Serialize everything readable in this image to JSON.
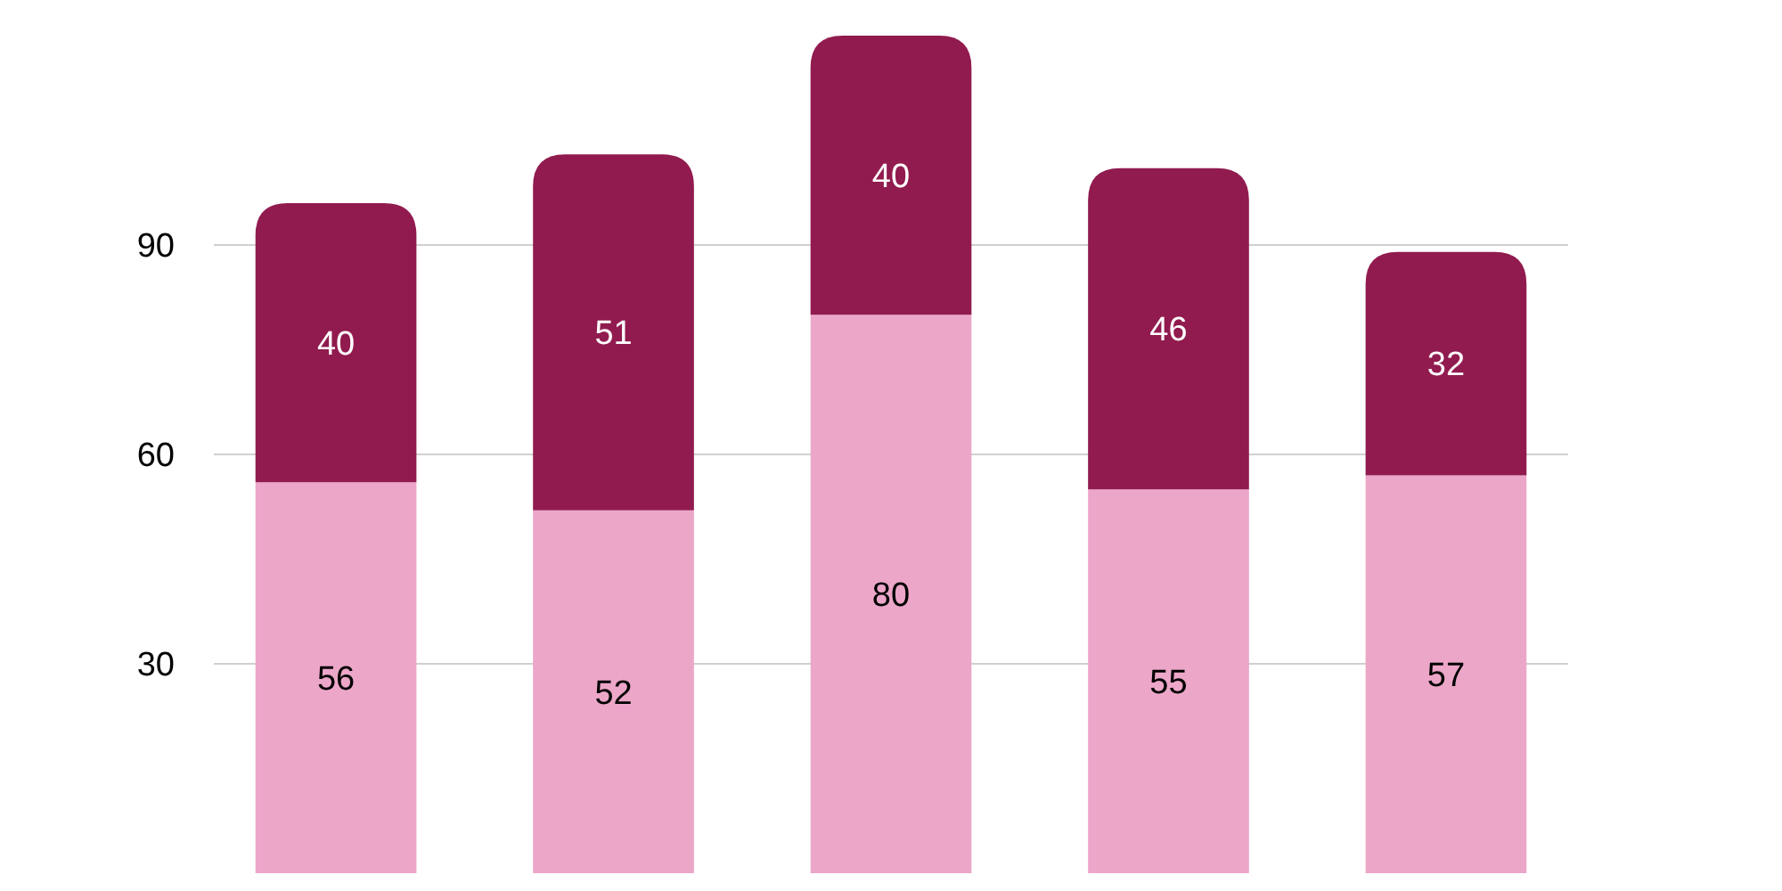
{
  "chart_data": {
    "type": "bar",
    "stacked": true,
    "categories": [
      null,
      null,
      null,
      null,
      null
    ],
    "series": [
      {
        "color": "#eca6c8",
        "values": [
          56,
          52,
          80,
          55,
          57
        ]
      },
      {
        "color": "#911b4f",
        "values": [
          40,
          51,
          40,
          46,
          32
        ]
      }
    ],
    "ylim": [
      0,
      120
    ],
    "yticks": [
      30,
      60,
      90
    ],
    "grid": "y",
    "data_labels": true
  }
}
